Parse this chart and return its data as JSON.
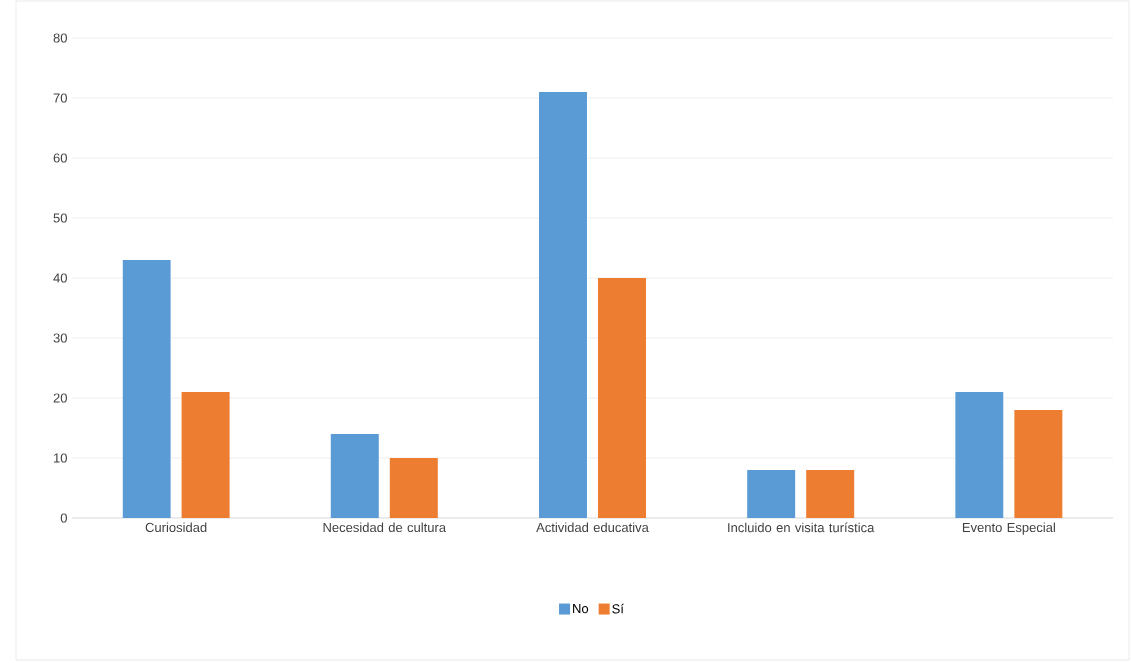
{
  "chart_data": {
    "type": "bar",
    "categories": [
      "Curiosidad",
      "Necesidad de cultura",
      "Actividad educativa",
      "Incluido en visita turística",
      "Evento Especial"
    ],
    "series": [
      {
        "name": "No",
        "color": "#5b9bd5",
        "values": [
          43,
          14,
          71,
          8,
          21
        ]
      },
      {
        "name": "Sí",
        "color": "#ed7d31",
        "values": [
          21,
          10,
          40,
          8,
          18
        ]
      }
    ],
    "ylim": [
      0,
      80
    ],
    "yticks": [
      0,
      10,
      20,
      30,
      40,
      50,
      60,
      70,
      80
    ],
    "grid": "y",
    "legend": "bottom"
  }
}
